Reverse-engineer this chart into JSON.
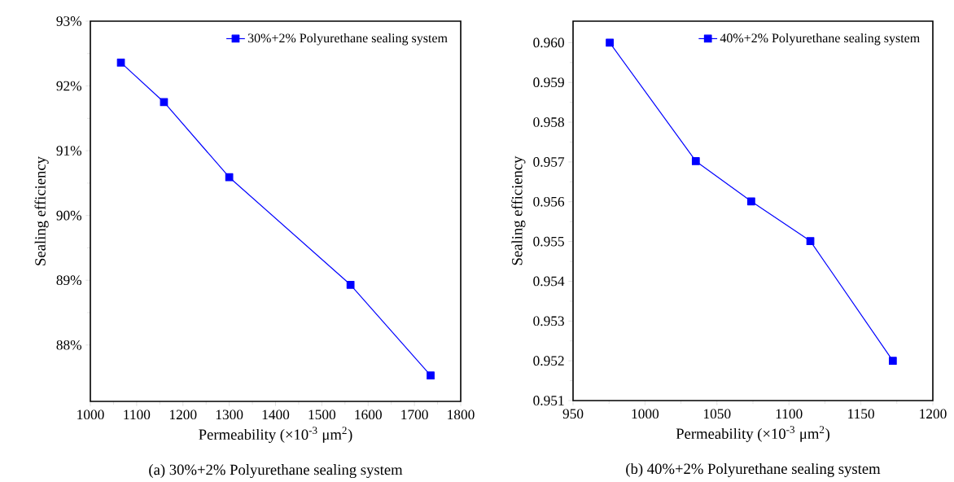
{
  "chart_data": [
    {
      "type": "line",
      "xlabel": "Permeability (×10$^{-3}$ μm$^{2}$)",
      "ylabel": "Sealing efficiency",
      "x": [
        1066,
        1159,
        1300,
        1562,
        1735
      ],
      "series": [
        {
          "name": "30%+2% Polyurethane sealing system",
          "color": "#0000ff",
          "values": [
            92.36,
            91.75,
            90.59,
            88.93,
            87.53
          ]
        }
      ],
      "xlim": [
        1000,
        1800
      ],
      "xticks": [
        1000,
        1100,
        1200,
        1300,
        1400,
        1500,
        1600,
        1700,
        1800
      ],
      "ylim": [
        87.13,
        93
      ],
      "yticks": [
        {
          "value": 88,
          "label": "88%"
        },
        {
          "value": 89,
          "label": "89%"
        },
        {
          "value": 90,
          "label": "90%"
        },
        {
          "value": 91,
          "label": "91%"
        },
        {
          "value": 92,
          "label": "92%"
        },
        {
          "value": 93,
          "label": "93%"
        }
      ],
      "marker": "square",
      "legend": "top right",
      "annotations": [
        "(a)  30%+2% Polyurethane sealing system"
      ]
    },
    {
      "type": "line",
      "xlabel": "Permeability (×10$^{-3}$ μm$^{2}$)",
      "ylabel": "Sealing efficiency",
      "x": [
        975.5,
        1035.3,
        1073.8,
        1114.9,
        1172.2
      ],
      "series": [
        {
          "name": "40%+2% Polyurethane sealing system",
          "color": "#0000ff",
          "values": [
            0.96,
            0.95702,
            0.95601,
            0.95501,
            0.952
          ]
        }
      ],
      "xlim": [
        950,
        1200
      ],
      "xticks": [
        950,
        1000,
        1050,
        1100,
        1150,
        1200
      ],
      "ylim": [
        0.951,
        0.96054
      ],
      "yticks": [
        0.951,
        0.952,
        0.953,
        0.954,
        0.955,
        0.956,
        0.957,
        0.958,
        0.959,
        {
          "value": 0.96,
          "label": "0.960"
        }
      ],
      "marker": "square",
      "legend": "top right",
      "annotations": [
        "(b)  40%+2% Polyurethane sealing system"
      ]
    }
  ]
}
